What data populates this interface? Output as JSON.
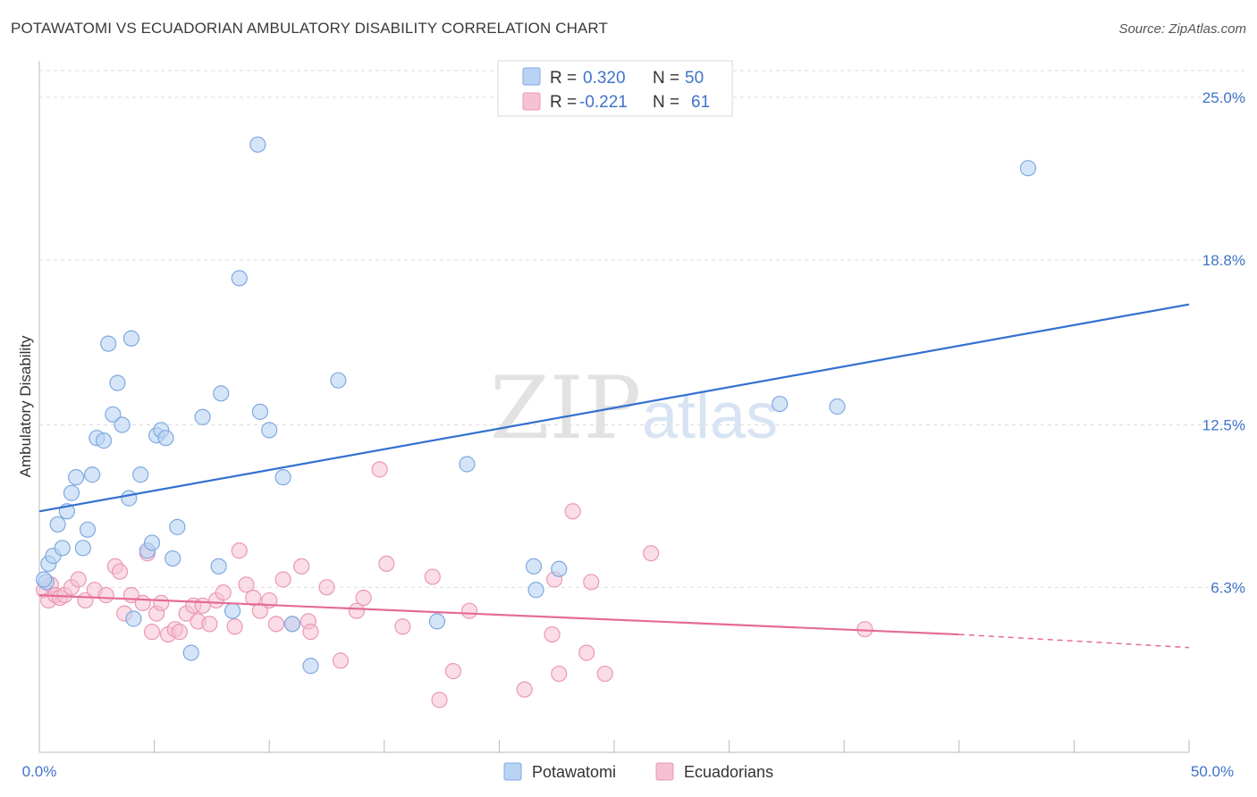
{
  "header": {
    "title": "POTAWATOMI VS ECUADORIAN AMBULATORY DISABILITY CORRELATION CHART",
    "source": "Source: ZipAtlas.com"
  },
  "colors": {
    "blue": "#3470d1",
    "blue_fill": "#b9d3f4",
    "pink": "#e56b96",
    "pink_fill": "#f6c1d2",
    "axis_text": "#3f74c9"
  },
  "legend": {
    "r_label": "R =",
    "n_label": "N =",
    "entries": [
      {
        "r": "0.320",
        "n": "50"
      },
      {
        "r": "-0.221",
        "n": "61"
      }
    ]
  },
  "watermark": {
    "zip": "ZIP",
    "atlas": "atlas"
  },
  "chart_data": {
    "type": "scatter",
    "title": "POTAWATOMI VS ECUADORIAN AMBULATORY DISABILITY CORRELATION CHART",
    "xlabel": "",
    "ylabel": "Ambulatory Disability",
    "xlim": [
      0,
      50
    ],
    "ylim": [
      0,
      26.4
    ],
    "x_tick_labels": [
      "0.0%",
      "50.0%"
    ],
    "y_ticks": [
      6.3,
      12.5,
      18.8,
      25.0
    ],
    "y_tick_labels": [
      "6.3%",
      "12.5%",
      "18.8%",
      "25.0%"
    ],
    "grid": true,
    "legend_position": "top-center",
    "series": [
      {
        "name": "Potawatomi",
        "trend": {
          "x0": 0,
          "y0": 9.2,
          "x1": 50,
          "y1": 17.1
        },
        "points": [
          [
            0.3,
            6.5
          ],
          [
            0.4,
            7.2
          ],
          [
            0.6,
            7.5
          ],
          [
            0.8,
            8.7
          ],
          [
            1.0,
            7.8
          ],
          [
            1.2,
            9.2
          ],
          [
            1.4,
            9.9
          ],
          [
            1.6,
            10.5
          ],
          [
            1.9,
            7.8
          ],
          [
            2.1,
            8.5
          ],
          [
            2.3,
            10.6
          ],
          [
            2.5,
            12.0
          ],
          [
            2.8,
            11.9
          ],
          [
            3.0,
            15.6
          ],
          [
            3.2,
            12.9
          ],
          [
            3.4,
            14.1
          ],
          [
            3.6,
            12.5
          ],
          [
            3.9,
            9.7
          ],
          [
            4.1,
            5.1
          ],
          [
            4.0,
            15.8
          ],
          [
            4.4,
            10.6
          ],
          [
            4.7,
            7.7
          ],
          [
            4.9,
            8.0
          ],
          [
            5.1,
            12.1
          ],
          [
            5.3,
            12.3
          ],
          [
            5.5,
            12.0
          ],
          [
            5.8,
            7.4
          ],
          [
            6.0,
            8.6
          ],
          [
            6.6,
            3.8
          ],
          [
            7.1,
            12.8
          ],
          [
            7.8,
            7.1
          ],
          [
            7.9,
            13.7
          ],
          [
            8.4,
            5.4
          ],
          [
            8.7,
            18.1
          ],
          [
            9.5,
            23.2
          ],
          [
            9.6,
            13.0
          ],
          [
            10.0,
            12.3
          ],
          [
            10.6,
            10.5
          ],
          [
            11.0,
            4.9
          ],
          [
            11.8,
            3.3
          ],
          [
            13.0,
            14.2
          ],
          [
            18.6,
            11.0
          ],
          [
            17.3,
            5.0
          ],
          [
            21.5,
            7.1
          ],
          [
            21.6,
            6.2
          ],
          [
            22.6,
            7.0
          ],
          [
            32.2,
            13.3
          ],
          [
            34.7,
            13.2
          ],
          [
            43.0,
            22.3
          ],
          [
            0.2,
            6.6
          ]
        ]
      },
      {
        "name": "Ecuadorians",
        "trend": {
          "x0": 0,
          "y0": 6.0,
          "x1": 40,
          "y1": 4.5,
          "dash_to_x": 50,
          "dash_to_y": 4.0
        },
        "points": [
          [
            0.2,
            6.2
          ],
          [
            0.4,
            5.8
          ],
          [
            0.5,
            6.4
          ],
          [
            0.7,
            6.0
          ],
          [
            0.9,
            5.9
          ],
          [
            1.1,
            6.0
          ],
          [
            1.4,
            6.3
          ],
          [
            1.7,
            6.6
          ],
          [
            2.0,
            5.8
          ],
          [
            2.4,
            6.2
          ],
          [
            2.9,
            6.0
          ],
          [
            3.3,
            7.1
          ],
          [
            3.5,
            6.9
          ],
          [
            3.7,
            5.3
          ],
          [
            4.0,
            6.0
          ],
          [
            4.5,
            5.7
          ],
          [
            4.7,
            7.6
          ],
          [
            4.9,
            4.6
          ],
          [
            5.1,
            5.3
          ],
          [
            5.3,
            5.7
          ],
          [
            5.6,
            4.5
          ],
          [
            5.9,
            4.7
          ],
          [
            6.1,
            4.6
          ],
          [
            6.4,
            5.3
          ],
          [
            6.7,
            5.6
          ],
          [
            6.9,
            5.0
          ],
          [
            7.1,
            5.6
          ],
          [
            7.4,
            4.9
          ],
          [
            7.7,
            5.8
          ],
          [
            8.0,
            6.1
          ],
          [
            8.5,
            4.8
          ],
          [
            8.7,
            7.7
          ],
          [
            9.0,
            6.4
          ],
          [
            9.3,
            5.9
          ],
          [
            9.6,
            5.4
          ],
          [
            10.0,
            5.8
          ],
          [
            10.3,
            4.9
          ],
          [
            10.6,
            6.6
          ],
          [
            11.0,
            4.9
          ],
          [
            11.4,
            7.1
          ],
          [
            11.7,
            5.0
          ],
          [
            11.8,
            4.6
          ],
          [
            12.5,
            6.3
          ],
          [
            13.1,
            3.5
          ],
          [
            13.8,
            5.4
          ],
          [
            14.1,
            5.9
          ],
          [
            14.8,
            10.8
          ],
          [
            15.1,
            7.2
          ],
          [
            15.8,
            4.8
          ],
          [
            17.1,
            6.7
          ],
          [
            17.4,
            2.0
          ],
          [
            18.0,
            3.1
          ],
          [
            18.7,
            5.4
          ],
          [
            21.1,
            2.4
          ],
          [
            22.3,
            4.5
          ],
          [
            22.4,
            6.6
          ],
          [
            22.6,
            3.0
          ],
          [
            23.2,
            9.2
          ],
          [
            23.8,
            3.8
          ],
          [
            24.6,
            3.0
          ],
          [
            24.0,
            6.5
          ],
          [
            26.6,
            7.6
          ],
          [
            35.9,
            4.7
          ]
        ]
      }
    ]
  },
  "bottom_legend": [
    "Potawatomi",
    "Ecuadorians"
  ]
}
